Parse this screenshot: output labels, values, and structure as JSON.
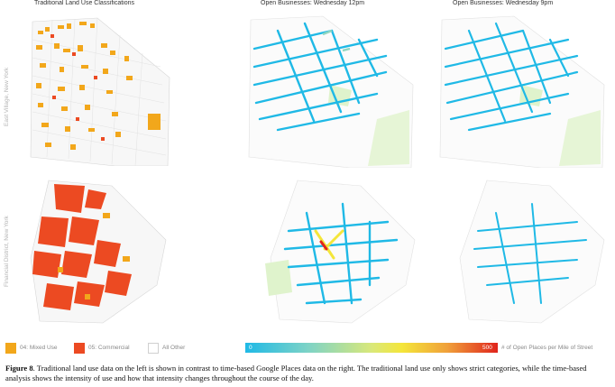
{
  "columns": {
    "left": "Traditional Land Use Classifications",
    "middle": "Open Businesses: Wednesday 12pm",
    "right": "Open Businesses: Wednesday 9pm"
  },
  "rows": {
    "top": "East Village, New York",
    "bottom": "Financial District, New York"
  },
  "legend": {
    "mixed_use": "04: Mixed Use",
    "commercial": "05: Commercial",
    "all_other": "All Other",
    "scale_min": "0",
    "scale_max": "500",
    "scale_label": "# of Open Places per Mile of Street"
  },
  "colors": {
    "mixed_use": "#f2a71b",
    "commercial": "#ec4a22",
    "all_other": "#ffffff",
    "street_low": "#1fb9e6",
    "street_high": "#e0241c",
    "park": "#dff3cc"
  },
  "caption": {
    "label": "Figure 8",
    "text": ". Traditional land use data on the left is shown in contrast to time-based Google Places data on the right. The traditional land use only shows strict categories, while the time-based analysis shows the intensity of use and how that intensity changes throughout the course of the day."
  }
}
